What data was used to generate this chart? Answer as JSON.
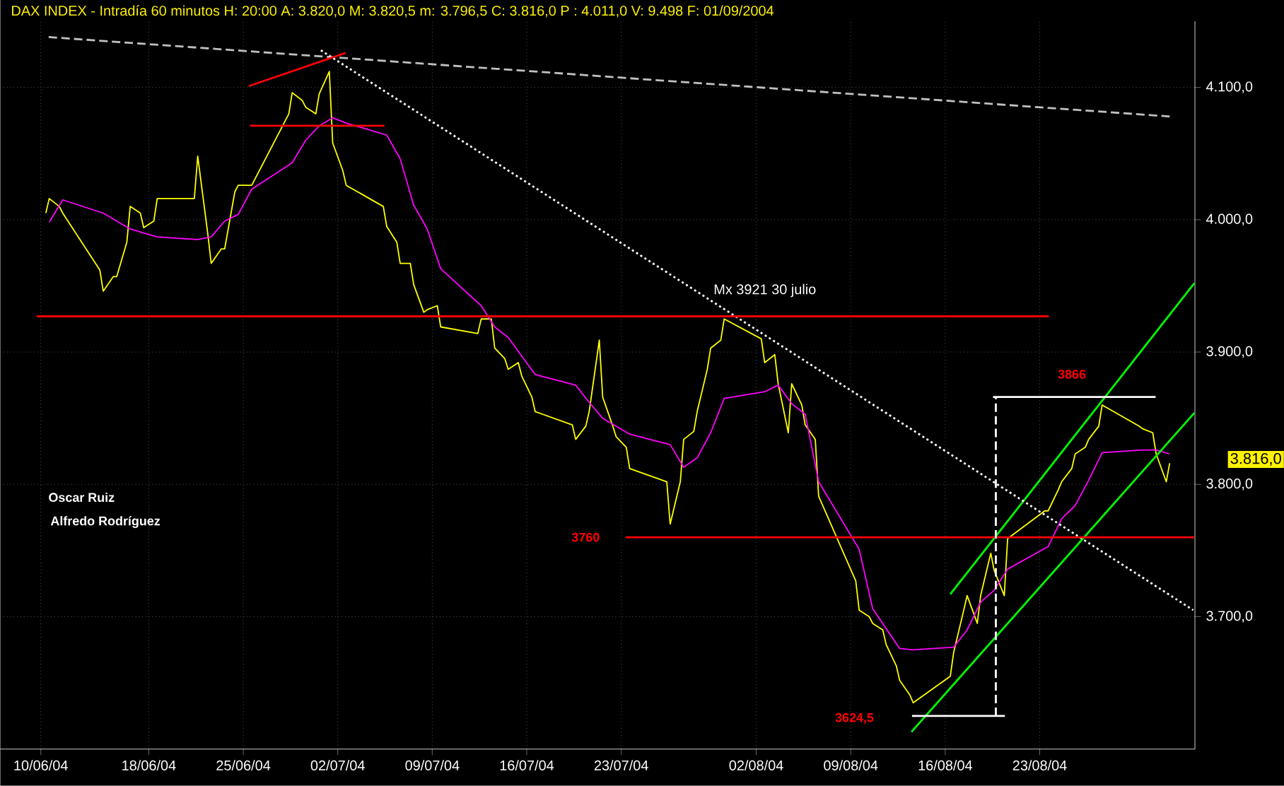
{
  "chart_data": {
    "type": "line",
    "title": "DAX INDEX - Intradía 60 minutos  H: 20:00  A: 3.820,0  M: 3.820,5  m: 3.796,5  C: 3.816,0  P : 4.011,0  V: 9.498  F: 01/09/2004",
    "xlim": [
      "2004-06-07T00:00",
      "2004-09-03T12:00"
    ],
    "ylim": [
      3600,
      4150
    ],
    "xticks": [
      {
        "value": "2004-06-10",
        "label": "10/06/04"
      },
      {
        "value": "2004-06-18",
        "label": "18/06/04"
      },
      {
        "value": "2004-06-25",
        "label": "25/06/04"
      },
      {
        "value": "2004-07-02",
        "label": "02/07/04"
      },
      {
        "value": "2004-07-09",
        "label": "09/07/04"
      },
      {
        "value": "2004-07-16",
        "label": "16/07/04"
      },
      {
        "value": "2004-07-23",
        "label": "23/07/04"
      },
      {
        "value": "2004-08-02",
        "label": "02/08/04"
      },
      {
        "value": "2004-08-09",
        "label": "09/08/04"
      },
      {
        "value": "2004-08-16",
        "label": "16/08/04"
      },
      {
        "value": "2004-08-23",
        "label": "23/08/04"
      }
    ],
    "yticks": [
      {
        "value": 3700,
        "label": "3.700,0"
      },
      {
        "value": 3800,
        "label": "3.800,0"
      },
      {
        "value": 3900,
        "label": "3.900,0"
      },
      {
        "value": 4000,
        "label": "4.000,0"
      },
      {
        "value": 4100,
        "label": "4.100,0"
      }
    ],
    "grid": true,
    "marker": "none",
    "x": [
      "2004-06-10T09:00",
      "2004-06-10T15:00",
      "2004-06-11T09:00",
      "2004-06-11T15:00",
      "2004-06-14T09:00",
      "2004-06-14T15:00",
      "2004-06-15T09:00",
      "2004-06-15T15:00",
      "2004-06-16T09:00",
      "2004-06-16T15:00",
      "2004-06-17T09:00",
      "2004-06-17T15:00",
      "2004-06-18T09:00",
      "2004-06-18T15:00",
      "2004-06-21T09:00",
      "2004-06-21T15:00",
      "2004-06-22T09:00",
      "2004-06-22T15:00",
      "2004-06-23T09:00",
      "2004-06-23T15:00",
      "2004-06-24T09:00",
      "2004-06-24T15:00",
      "2004-06-25T09:00",
      "2004-06-25T15:00",
      "2004-06-28T09:00",
      "2004-06-28T15:00",
      "2004-06-29T09:00",
      "2004-06-29T15:00",
      "2004-06-30T09:00",
      "2004-06-30T15:00",
      "2004-07-01T09:00",
      "2004-07-01T15:00",
      "2004-07-02T09:00",
      "2004-07-02T15:00",
      "2004-07-05T09:00",
      "2004-07-05T15:00",
      "2004-07-06T09:00",
      "2004-07-06T15:00",
      "2004-07-07T09:00",
      "2004-07-07T15:00",
      "2004-07-08T09:00",
      "2004-07-08T15:00",
      "2004-07-09T09:00",
      "2004-07-09T15:00",
      "2004-07-12T09:00",
      "2004-07-12T15:00",
      "2004-07-13T09:00",
      "2004-07-13T15:00",
      "2004-07-14T09:00",
      "2004-07-14T15:00",
      "2004-07-15T09:00",
      "2004-07-15T15:00",
      "2004-07-16T09:00",
      "2004-07-16T15:00",
      "2004-07-19T09:00",
      "2004-07-19T15:00",
      "2004-07-20T09:00",
      "2004-07-20T15:00",
      "2004-07-21T09:00",
      "2004-07-21T15:00",
      "2004-07-22T09:00",
      "2004-07-22T15:00",
      "2004-07-23T09:00",
      "2004-07-23T15:00",
      "2004-07-26T09:00",
      "2004-07-26T15:00",
      "2004-07-27T09:00",
      "2004-07-27T15:00",
      "2004-07-28T09:00",
      "2004-07-28T15:00",
      "2004-07-29T09:00",
      "2004-07-29T15:00",
      "2004-07-30T09:00",
      "2004-07-30T15:00",
      "2004-08-02T09:00",
      "2004-08-02T15:00",
      "2004-08-03T09:00",
      "2004-08-03T15:00",
      "2004-08-04T09:00",
      "2004-08-04T15:00",
      "2004-08-05T09:00",
      "2004-08-05T15:00",
      "2004-08-06T09:00",
      "2004-08-06T15:00",
      "2004-08-09T09:00",
      "2004-08-09T15:00",
      "2004-08-10T09:00",
      "2004-08-10T15:00",
      "2004-08-11T09:00",
      "2004-08-11T15:00",
      "2004-08-12T09:00",
      "2004-08-12T15:00",
      "2004-08-13T09:00",
      "2004-08-13T15:00",
      "2004-08-16T09:00",
      "2004-08-16T15:00",
      "2004-08-17T09:00",
      "2004-08-17T15:00",
      "2004-08-18T09:00",
      "2004-08-18T15:00",
      "2004-08-19T09:00",
      "2004-08-19T15:00",
      "2004-08-20T09:00",
      "2004-08-20T15:00",
      "2004-08-23T09:00",
      "2004-08-23T15:00",
      "2004-08-24T09:00",
      "2004-08-24T15:00",
      "2004-08-25T09:00",
      "2004-08-25T15:00",
      "2004-08-26T09:00",
      "2004-08-26T15:00",
      "2004-08-27T09:00",
      "2004-08-27T15:00",
      "2004-08-30T09:00",
      "2004-08-30T15:00",
      "2004-08-31T09:00",
      "2004-08-31T15:00",
      "2004-09-01T09:00",
      "2004-09-01T15:00"
    ],
    "series": [
      {
        "color": "#ffff00",
        "line_style": "solid",
        "values": [
          4005,
          4016,
          4010,
          4005,
          3962,
          3946,
          3957,
          3957,
          3983,
          4010,
          4005,
          3994,
          3999,
          4016,
          4016,
          4048,
          3989,
          3967,
          3978,
          3978,
          4021,
          4026,
          4026,
          4026,
          4080,
          4096,
          4090,
          4085,
          4080,
          4095,
          4112,
          4058,
          4037,
          4026,
          4010,
          3995,
          3983,
          3967,
          3967,
          3951,
          3930,
          3932,
          3935,
          3919,
          3914,
          3925,
          3925,
          3903,
          3895,
          3887,
          3892,
          3882,
          3866,
          3855,
          3845,
          3834,
          3844,
          3855,
          3909,
          3866,
          3844,
          3836,
          3828,
          3812,
          3802,
          3770,
          3802,
          3834,
          3840,
          3855,
          3887,
          3903,
          3909,
          3925,
          3910,
          3892,
          3898,
          3876,
          3839,
          3876,
          3860,
          3845,
          3834,
          3791,
          3727,
          3705,
          3700,
          3695,
          3690,
          3679,
          3663,
          3652,
          3641,
          3635,
          3655,
          3673,
          3705,
          3716,
          3695,
          3716,
          3748,
          3735,
          3716,
          3759,
          3780,
          3780,
          3796,
          3802,
          3812,
          3823,
          3828,
          3834,
          3844,
          3860,
          3844,
          3842,
          3839,
          3823,
          3802,
          3816
        ]
      },
      {
        "color": "#ff00ff",
        "line_style": "solid",
        "x": [
          "2004-06-10T15:00",
          "2004-06-11T15:00",
          "2004-06-14T15:00",
          "2004-06-15T15:00",
          "2004-06-16T15:00",
          "2004-06-17T15:00",
          "2004-06-18T15:00",
          "2004-06-21T15:00",
          "2004-06-22T15:00",
          "2004-06-23T15:00",
          "2004-06-24T15:00",
          "2004-06-25T15:00",
          "2004-06-28T15:00",
          "2004-06-29T15:00",
          "2004-06-30T15:00",
          "2004-07-01T15:00",
          "2004-07-02T15:00",
          "2004-07-05T15:00",
          "2004-07-06T15:00",
          "2004-07-07T15:00",
          "2004-07-08T15:00",
          "2004-07-09T15:00",
          "2004-07-12T15:00",
          "2004-07-13T15:00",
          "2004-07-14T15:00",
          "2004-07-15T15:00",
          "2004-07-16T15:00",
          "2004-07-19T15:00",
          "2004-07-20T15:00",
          "2004-07-21T15:00",
          "2004-07-22T15:00",
          "2004-07-23T15:00",
          "2004-07-26T15:00",
          "2004-07-27T15:00",
          "2004-07-28T15:00",
          "2004-07-29T15:00",
          "2004-07-30T15:00",
          "2004-08-02T15:00",
          "2004-08-03T15:00",
          "2004-08-04T15:00",
          "2004-08-05T15:00",
          "2004-08-06T15:00",
          "2004-08-09T15:00",
          "2004-08-10T15:00",
          "2004-08-11T15:00",
          "2004-08-12T15:00",
          "2004-08-13T15:00",
          "2004-08-16T15:00",
          "2004-08-17T15:00",
          "2004-08-18T15:00",
          "2004-08-19T15:00",
          "2004-08-20T15:00",
          "2004-08-23T15:00",
          "2004-08-24T15:00",
          "2004-08-25T15:00",
          "2004-08-26T15:00",
          "2004-08-27T15:00",
          "2004-08-30T15:00",
          "2004-08-31T15:00",
          "2004-09-01T15:00"
        ],
        "values": [
          3998,
          4015,
          4005,
          3999,
          3993,
          3990,
          3987,
          3985,
          3987,
          3999,
          4004,
          4023,
          4043,
          4060,
          4071,
          4077,
          4073,
          4064,
          4046,
          4011,
          3993,
          3963,
          3935,
          3919,
          3911,
          3897,
          3883,
          3875,
          3862,
          3850,
          3844,
          3838,
          3830,
          3813,
          3820,
          3839,
          3865,
          3870,
          3875,
          3861,
          3853,
          3802,
          3751,
          3706,
          3691,
          3676,
          3675,
          3677,
          3690,
          3711,
          3720,
          3736,
          3753,
          3774,
          3784,
          3803,
          3824,
          3826,
          3826,
          3823
        ]
      },
      {
        "color": "#00ff00",
        "line_style": "solid",
        "x": [
          "2004-08-16T09:00",
          "2004-09-03T11:00"
        ],
        "values": [
          3717,
          3952
        ]
      },
      {
        "color": "#00ff00",
        "line_style": "solid",
        "x": [
          "2004-08-13T12:00",
          "2004-09-03T11:00"
        ],
        "values": [
          3613,
          3854
        ]
      },
      {
        "color": "#c0c0c0",
        "line_style": "dashed",
        "x": [
          "2004-06-10T14:00",
          "2004-09-01T15:00"
        ],
        "values": [
          4138,
          4078
        ]
      },
      {
        "color": "#ffffff",
        "line_style": "dotted",
        "x": [
          "2004-06-30T18:00",
          "2004-09-03T09:00"
        ],
        "values": [
          4128,
          3705
        ]
      },
      {
        "color": "#ff0000",
        "line_style": "solid",
        "x": [
          "2004-06-25T10:00",
          "2004-07-02T14:00"
        ],
        "values": [
          4101,
          4126
        ]
      },
      {
        "color": "#ff0000",
        "line_style": "solid",
        "x": [
          "2004-06-25T12:00",
          "2004-07-05T11:00"
        ],
        "values": [
          4071,
          4071
        ]
      },
      {
        "color": "#ff0000",
        "line_style": "solid",
        "x": [
          "2004-06-09T17:00",
          "2004-08-23T16:00"
        ],
        "values": [
          3927,
          3927
        ]
      },
      {
        "color": "#ff0000",
        "line_style": "solid",
        "x": [
          "2004-07-23T08:00",
          "2004-09-03T11:00"
        ],
        "values": [
          3760,
          3760
        ]
      },
      {
        "color": "#ffffff",
        "line_style": "solid",
        "x": [
          "2004-08-19T13:00",
          "2004-08-31T14:00"
        ],
        "values": [
          3866,
          3866
        ]
      },
      {
        "color": "#ffffff",
        "line_style": "solid",
        "x": [
          "2004-08-13T13:00",
          "2004-08-20T10:00"
        ],
        "values": [
          3625,
          3625
        ]
      },
      {
        "color": "#ffffff",
        "line_style": "dashed",
        "x": [
          "2004-08-19T18:00",
          "2004-08-19T18:00"
        ],
        "values": [
          3625,
          3866
        ]
      }
    ],
    "annotations": [
      "3866",
      "3760",
      "3624,5",
      "Mx 3921 30 julio",
      "3.816,0",
      "Oscar Ruiz",
      "Alfredo Rodríguez"
    ]
  }
}
